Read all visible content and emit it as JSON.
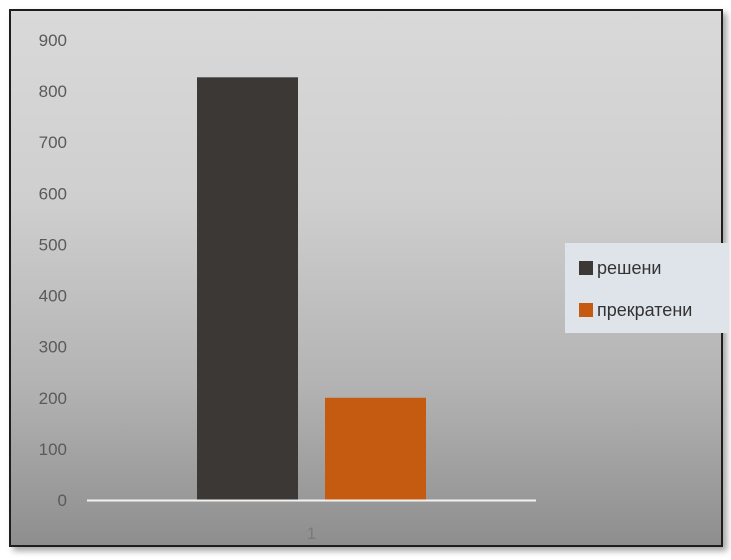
{
  "chart_data": {
    "type": "bar",
    "categories": [
      "1"
    ],
    "series": [
      {
        "name": "решени",
        "values": [
          827
        ],
        "color": "#3b3836"
      },
      {
        "name": "прекратени",
        "values": [
          200
        ],
        "color": "#c55a11"
      }
    ],
    "ylim": [
      0,
      900
    ],
    "yticks": [
      "0",
      "100",
      "200",
      "300",
      "400",
      "500",
      "600",
      "700",
      "800",
      "900"
    ],
    "grid": false,
    "legend_position": "right"
  }
}
